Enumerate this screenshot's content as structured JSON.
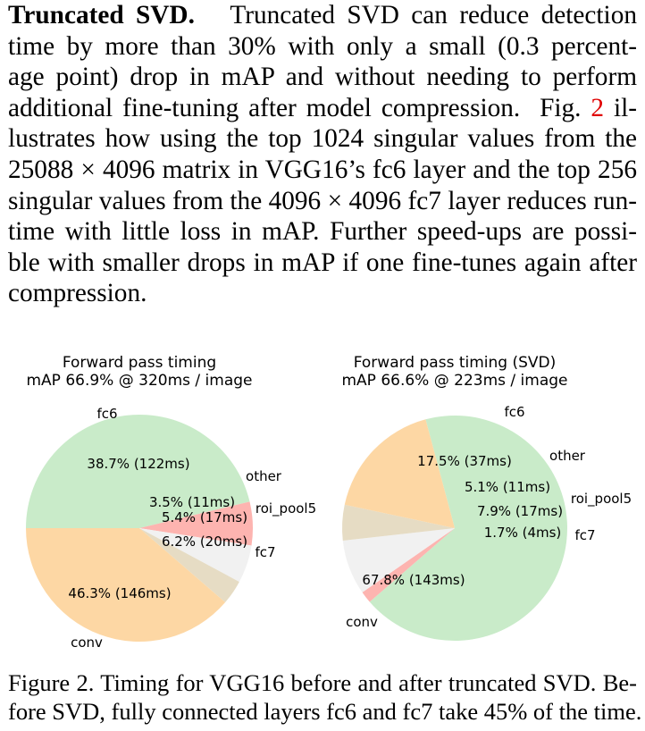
{
  "paragraph": {
    "heading": "Truncated SVD.",
    "lines": [
      "Truncated SVD can reduce detection",
      "time by more than 30% with only a small (0.3 percent-",
      "age point) drop in mAP and without needing to perform",
      "additional fine-tuning after model compression.",
      "lustrates how using the top 1024 singular values from the",
      "25088 × 4096 matrix in VGG16’s fc6 layer and the top 256",
      "singular values from the 4096 × 4096 fc7 layer reduces run-",
      "time with little loss in mAP. Further speed-ups are possi-",
      "ble with smaller drops in mAP if one fine-tunes again after",
      "compression."
    ],
    "fig_prefix": "Fig.",
    "fig_ref": "2",
    "fig_suffix": "il-"
  },
  "chart_data": [
    {
      "type": "pie",
      "title": "Forward pass timing",
      "subtitle": "mAP 66.9% @ 320ms / image",
      "slices": [
        {
          "name": "conv",
          "percent": 46.3,
          "ms": 146,
          "label": "46.3% (146ms)",
          "color": "#c9ebc9"
        },
        {
          "name": "fc6",
          "percent": 38.7,
          "ms": 122,
          "label": "38.7% (122ms)",
          "color": "#fdd7a4"
        },
        {
          "name": "other",
          "percent": 3.5,
          "ms": 11,
          "label": "3.5% (11ms)",
          "color": "#e6dcc4"
        },
        {
          "name": "roi_pool5",
          "percent": 5.4,
          "ms": 17,
          "label": "5.4% (17ms)",
          "color": "#f1f1f1"
        },
        {
          "name": "fc7",
          "percent": 6.2,
          "ms": 20,
          "label": "6.2% (20ms)",
          "color": "#fdb4b0"
        }
      ]
    },
    {
      "type": "pie",
      "title": "Forward pass timing (SVD)",
      "subtitle": "mAP 66.6% @ 223ms / image",
      "slices": [
        {
          "name": "conv",
          "percent": 67.8,
          "ms": 143,
          "label": "67.8% (143ms)",
          "color": "#c9ebc9"
        },
        {
          "name": "fc6",
          "percent": 17.5,
          "ms": 37,
          "label": "17.5% (37ms)",
          "color": "#fdd7a4"
        },
        {
          "name": "other",
          "percent": 5.1,
          "ms": 11,
          "label": "5.1% (11ms)",
          "color": "#e6dcc4"
        },
        {
          "name": "roi_pool5",
          "percent": 7.9,
          "ms": 17,
          "label": "7.9% (17ms)",
          "color": "#f1f1f1"
        },
        {
          "name": "fc7",
          "percent": 1.7,
          "ms": 4,
          "label": "1.7% (4ms)",
          "color": "#fdb4b0"
        }
      ]
    }
  ],
  "caption": {
    "lines": [
      "Figure 2. Timing for VGG16 before and after truncated SVD. Be-",
      "fore SVD, fully connected layers fc6 and fc7 take 45% of the time."
    ]
  }
}
